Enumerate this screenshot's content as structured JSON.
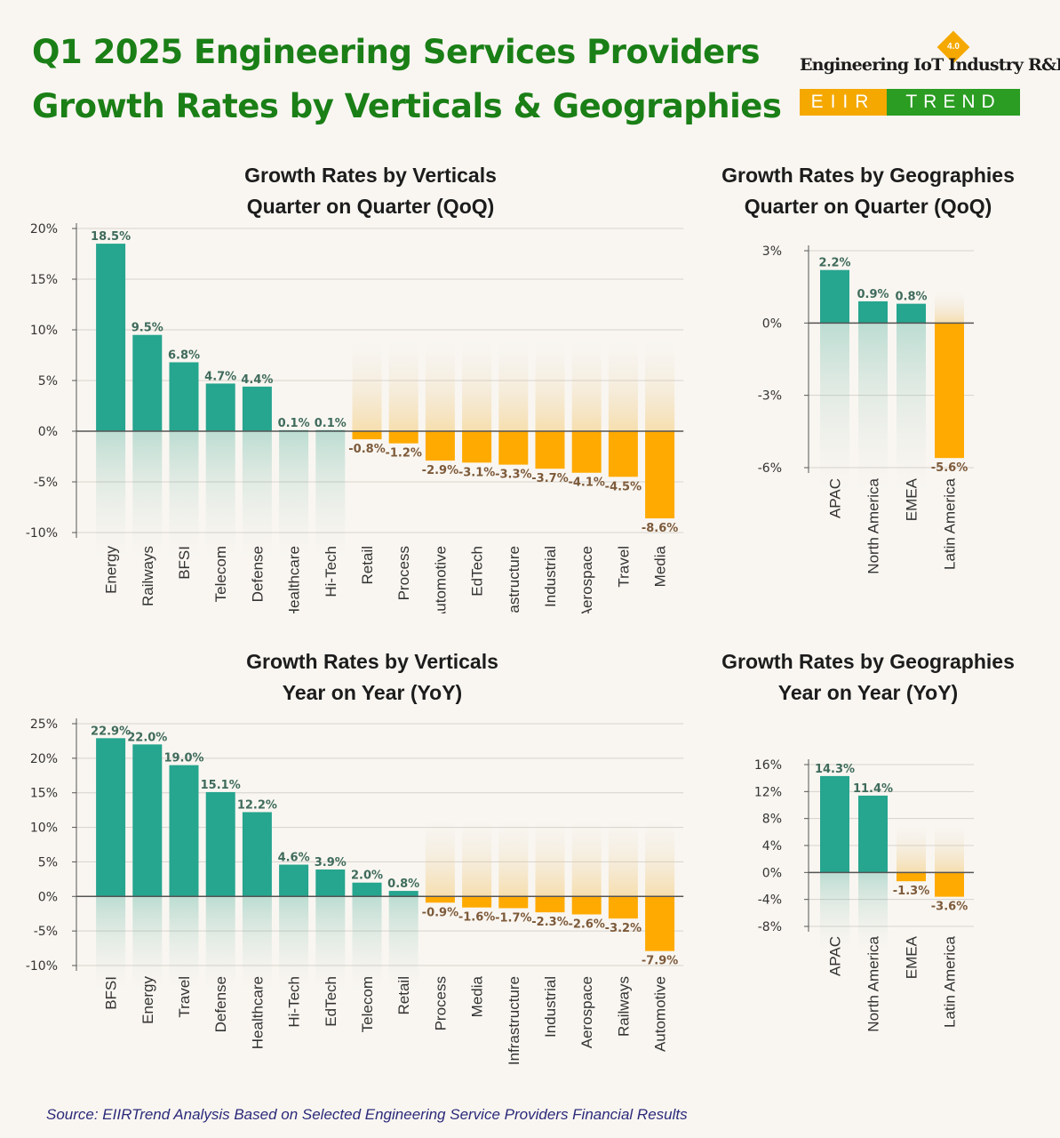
{
  "header": {
    "title_line1": "Q1 2025 Engineering Services Providers",
    "title_line2": "Growth Rates by Verticals & Geographies"
  },
  "logo": {
    "line1": "Engineering IoT Industry R&D",
    "badge": "4.0",
    "left": "EIIR",
    "right": "TREND",
    "orange": "#f5a800",
    "green": "#2b9d22"
  },
  "colors": {
    "positive": "#26a58f",
    "negative": "#ffaa00",
    "pos_label": "#3f6b5c",
    "neg_label": "#7d5a3a",
    "title_green": "#1a7f16"
  },
  "chart_data": [
    {
      "type": "bar",
      "title": "Growth Rates by Verticals",
      "subtitle": "Quarter on Quarter (QoQ)",
      "categories": [
        "Energy",
        "Railways",
        "BFSI",
        "Telecom",
        "Defense",
        "Healthcare",
        "Hi-Tech",
        "Retail",
        "Process",
        "Automotive",
        "EdTech",
        "Infrastructure",
        "Industrial",
        "Aerospace",
        "Travel",
        "Media"
      ],
      "values": [
        18.5,
        9.5,
        6.8,
        4.7,
        4.4,
        0.1,
        0.1,
        -0.8,
        -1.2,
        -2.9,
        -3.1,
        -3.3,
        -3.7,
        -4.1,
        -4.5,
        -8.6
      ],
      "value_labels": [
        "18.5%",
        "9.5%",
        "6.8%",
        "4.7%",
        "4.4%",
        "0.1%",
        "0.1%",
        "-0.8%",
        "-1.2%",
        "-2.9%",
        "-3.1%",
        "-3.3%",
        "-3.7%",
        "-4.1%",
        "-4.5%",
        "-8.6%"
      ],
      "yticks": [
        20,
        15,
        10,
        5,
        0,
        -5,
        -10
      ],
      "ytick_labels": [
        "20%",
        "15%",
        "10%",
        "5%",
        "0%",
        "-5%",
        "-10%"
      ],
      "ylim": [
        -10,
        20
      ]
    },
    {
      "type": "bar",
      "title": "Growth Rates by Geographies",
      "subtitle": "Quarter on Quarter (QoQ)",
      "categories": [
        "APAC",
        "North America",
        "EMEA",
        "Latin America"
      ],
      "values": [
        2.2,
        0.9,
        0.8,
        -5.6
      ],
      "value_labels": [
        "2.2%",
        "0.9%",
        "0.8%",
        "-5.6%"
      ],
      "yticks": [
        3,
        0,
        -3,
        -6
      ],
      "ytick_labels": [
        "3%",
        "0%",
        "-3%",
        "-6%"
      ],
      "ylim": [
        -6,
        3
      ]
    },
    {
      "type": "bar",
      "title": "Growth Rates by Verticals",
      "subtitle": "Year on Year (YoY)",
      "categories": [
        "BFSI",
        "Energy",
        "Travel",
        "Defense",
        "Healthcare",
        "Hi-Tech",
        "EdTech",
        "Telecom",
        "Retail",
        "Process",
        "Media",
        "Infrastructure",
        "Industrial",
        "Aerospace",
        "Railways",
        "Automotive"
      ],
      "values": [
        22.9,
        22.0,
        19.0,
        15.1,
        12.2,
        4.6,
        3.9,
        2.0,
        0.8,
        -0.9,
        -1.6,
        -1.7,
        -2.3,
        -2.6,
        -3.2,
        -7.9
      ],
      "value_labels": [
        "22.9%",
        "22.0%",
        "19.0%",
        "15.1%",
        "12.2%",
        "4.6%",
        "3.9%",
        "2.0%",
        "0.8%",
        "-0.9%",
        "-1.6%",
        "-1.7%",
        "-2.3%",
        "-2.6%",
        "-3.2%",
        "-7.9%"
      ],
      "yticks": [
        25,
        20,
        15,
        10,
        5,
        0,
        -5,
        -10
      ],
      "ytick_labels": [
        "25%",
        "20%",
        "15%",
        "10%",
        "5%",
        "0%",
        "-5%",
        "-10%"
      ],
      "ylim": [
        -10,
        25
      ]
    },
    {
      "type": "bar",
      "title": "Growth Rates by Geographies",
      "subtitle": "Year on Year (YoY)",
      "categories": [
        "APAC",
        "North America",
        "EMEA",
        "Latin America"
      ],
      "values": [
        14.3,
        11.4,
        -1.3,
        -3.6
      ],
      "value_labels": [
        "14.3%",
        "11.4%",
        "-1.3%",
        "-3.6%"
      ],
      "yticks": [
        16,
        12,
        8,
        4,
        0,
        -4,
        -8
      ],
      "ytick_labels": [
        "16%",
        "12%",
        "8%",
        "4%",
        "0%",
        "-4%",
        "-8%"
      ],
      "ylim": [
        -8,
        16
      ]
    }
  ],
  "footer": {
    "source": "Source: EIIRTrend Analysis Based on Selected Engineering Service Providers Financial Results"
  }
}
